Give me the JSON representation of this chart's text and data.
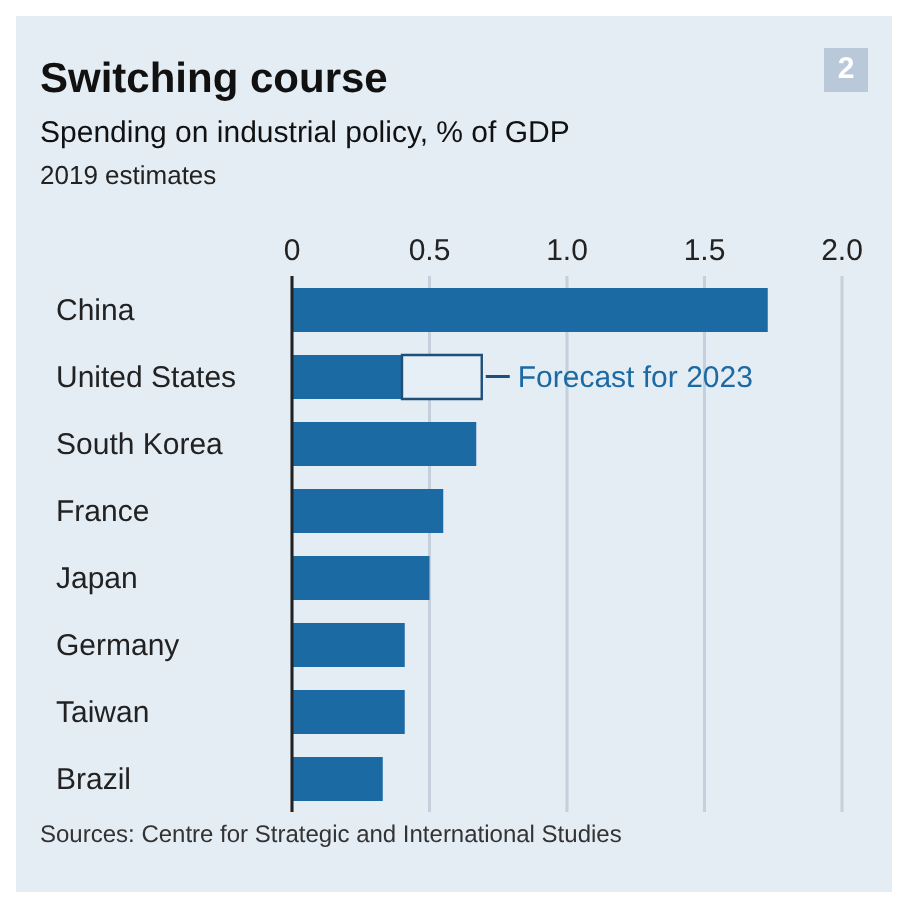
{
  "chart_data": {
    "type": "bar",
    "orientation": "horizontal",
    "stacked": true,
    "title": "Switching course",
    "subtitle": "Spending on industrial policy, % of GDP",
    "categories": [
      "China",
      "United States",
      "South Korea",
      "France",
      "Japan",
      "Germany",
      "Taiwan",
      "Brazil"
    ],
    "series": [
      {
        "color": "#1c6aa3",
        "values": [
          1.73,
          0.4,
          0.67,
          0.55,
          0.5,
          0.41,
          0.41,
          0.33
        ]
      },
      {
        "color": "#e6eef6",
        "values": [
          null,
          0.29,
          null,
          null,
          null,
          null,
          null,
          null
        ]
      }
    ],
    "xlim": [
      0,
      2
    ],
    "xticks": [
      0,
      {
        "value": 0.5,
        "label": "0.5"
      },
      {
        "value": 1,
        "label": "1.0"
      },
      {
        "value": 1.5,
        "label": "1.5"
      },
      {
        "value": 2,
        "label": "2.0"
      }
    ],
    "grid": "x",
    "legend": false,
    "annotations": [
      {
        "text": "Forecast for 2023",
        "x": 0.69,
        "y": "United States"
      },
      "2019 estimates",
      "2",
      "Sources: Centre for Strategic and International Studies"
    ]
  }
}
